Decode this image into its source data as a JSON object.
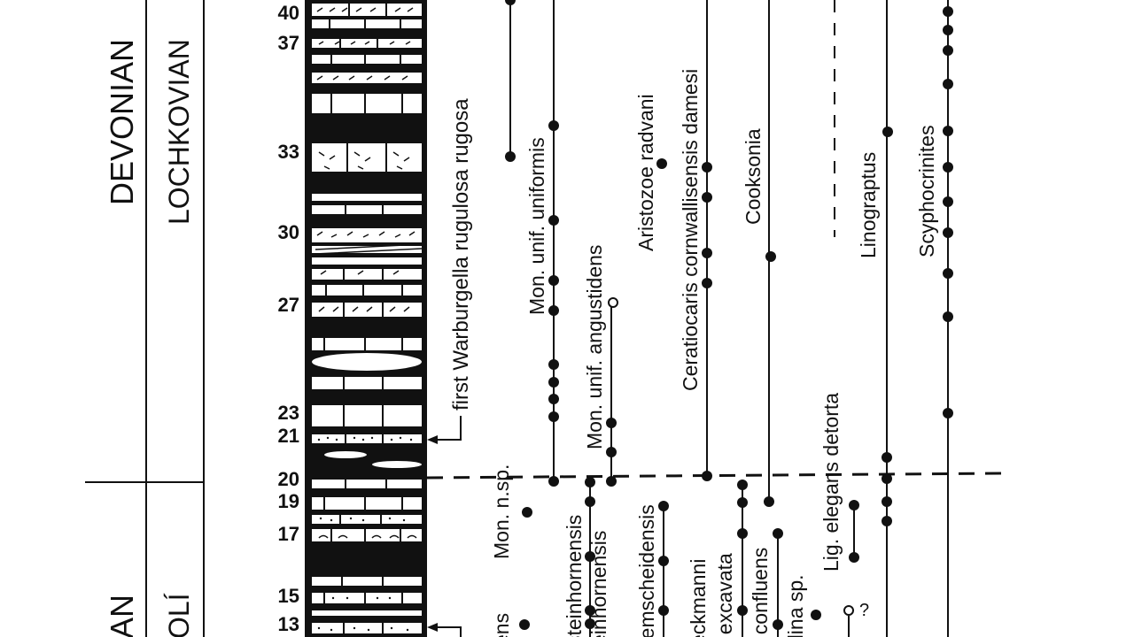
{
  "periods": [
    {
      "name": "DEVONIAN",
      "stage": "LOCHKOVIAN"
    },
    {
      "name": "AN",
      "stage": "OLÍ"
    }
  ],
  "bed_numbers": [
    "40",
    "37",
    "33",
    "30",
    "27",
    "23",
    "21",
    "20",
    "19",
    "17",
    "15",
    "13"
  ],
  "annotations": {
    "first_marker": "first Warburgella  rugulosa  rugosa"
  },
  "taxa": [
    {
      "id": "mon-unif-uniformis",
      "label": "Mon. unif. uniformis"
    },
    {
      "id": "mon-unif-angustidens",
      "label": "Mon. unif. angustidens"
    },
    {
      "id": "aristozoe-radvani",
      "label": "Aristozoe radvani"
    },
    {
      "id": "ceratiocaris",
      "label": "Ceratiocaris cornwallisensis damesi"
    },
    {
      "id": "cooksonia",
      "label": "Cooksonia"
    },
    {
      "id": "linograptus",
      "label": "Linograptus"
    },
    {
      "id": "scyphocrinites",
      "label": "Scyphocrinites"
    },
    {
      "id": "mon-n-sp",
      "label": "Mon. n.sp."
    },
    {
      "id": "steinhornensis-1",
      "label": "steinhornensis"
    },
    {
      "id": "steinhornensis-2",
      "label": "einhornensis"
    },
    {
      "id": "bohemicus",
      "label": "ens"
    },
    {
      "id": "kremscheidensis",
      "label": "remscheidensis"
    },
    {
      "id": "beckmanni",
      "label": "eckmanni"
    },
    {
      "id": "excavata",
      "label": ". excavata"
    },
    {
      "id": "confluens",
      "label": ". confluens"
    },
    {
      "id": "dina-sp",
      "label": "dina sp."
    },
    {
      "id": "lig-elegans",
      "label": "Lig. elegans detorta"
    }
  ],
  "query_mark": "?"
}
